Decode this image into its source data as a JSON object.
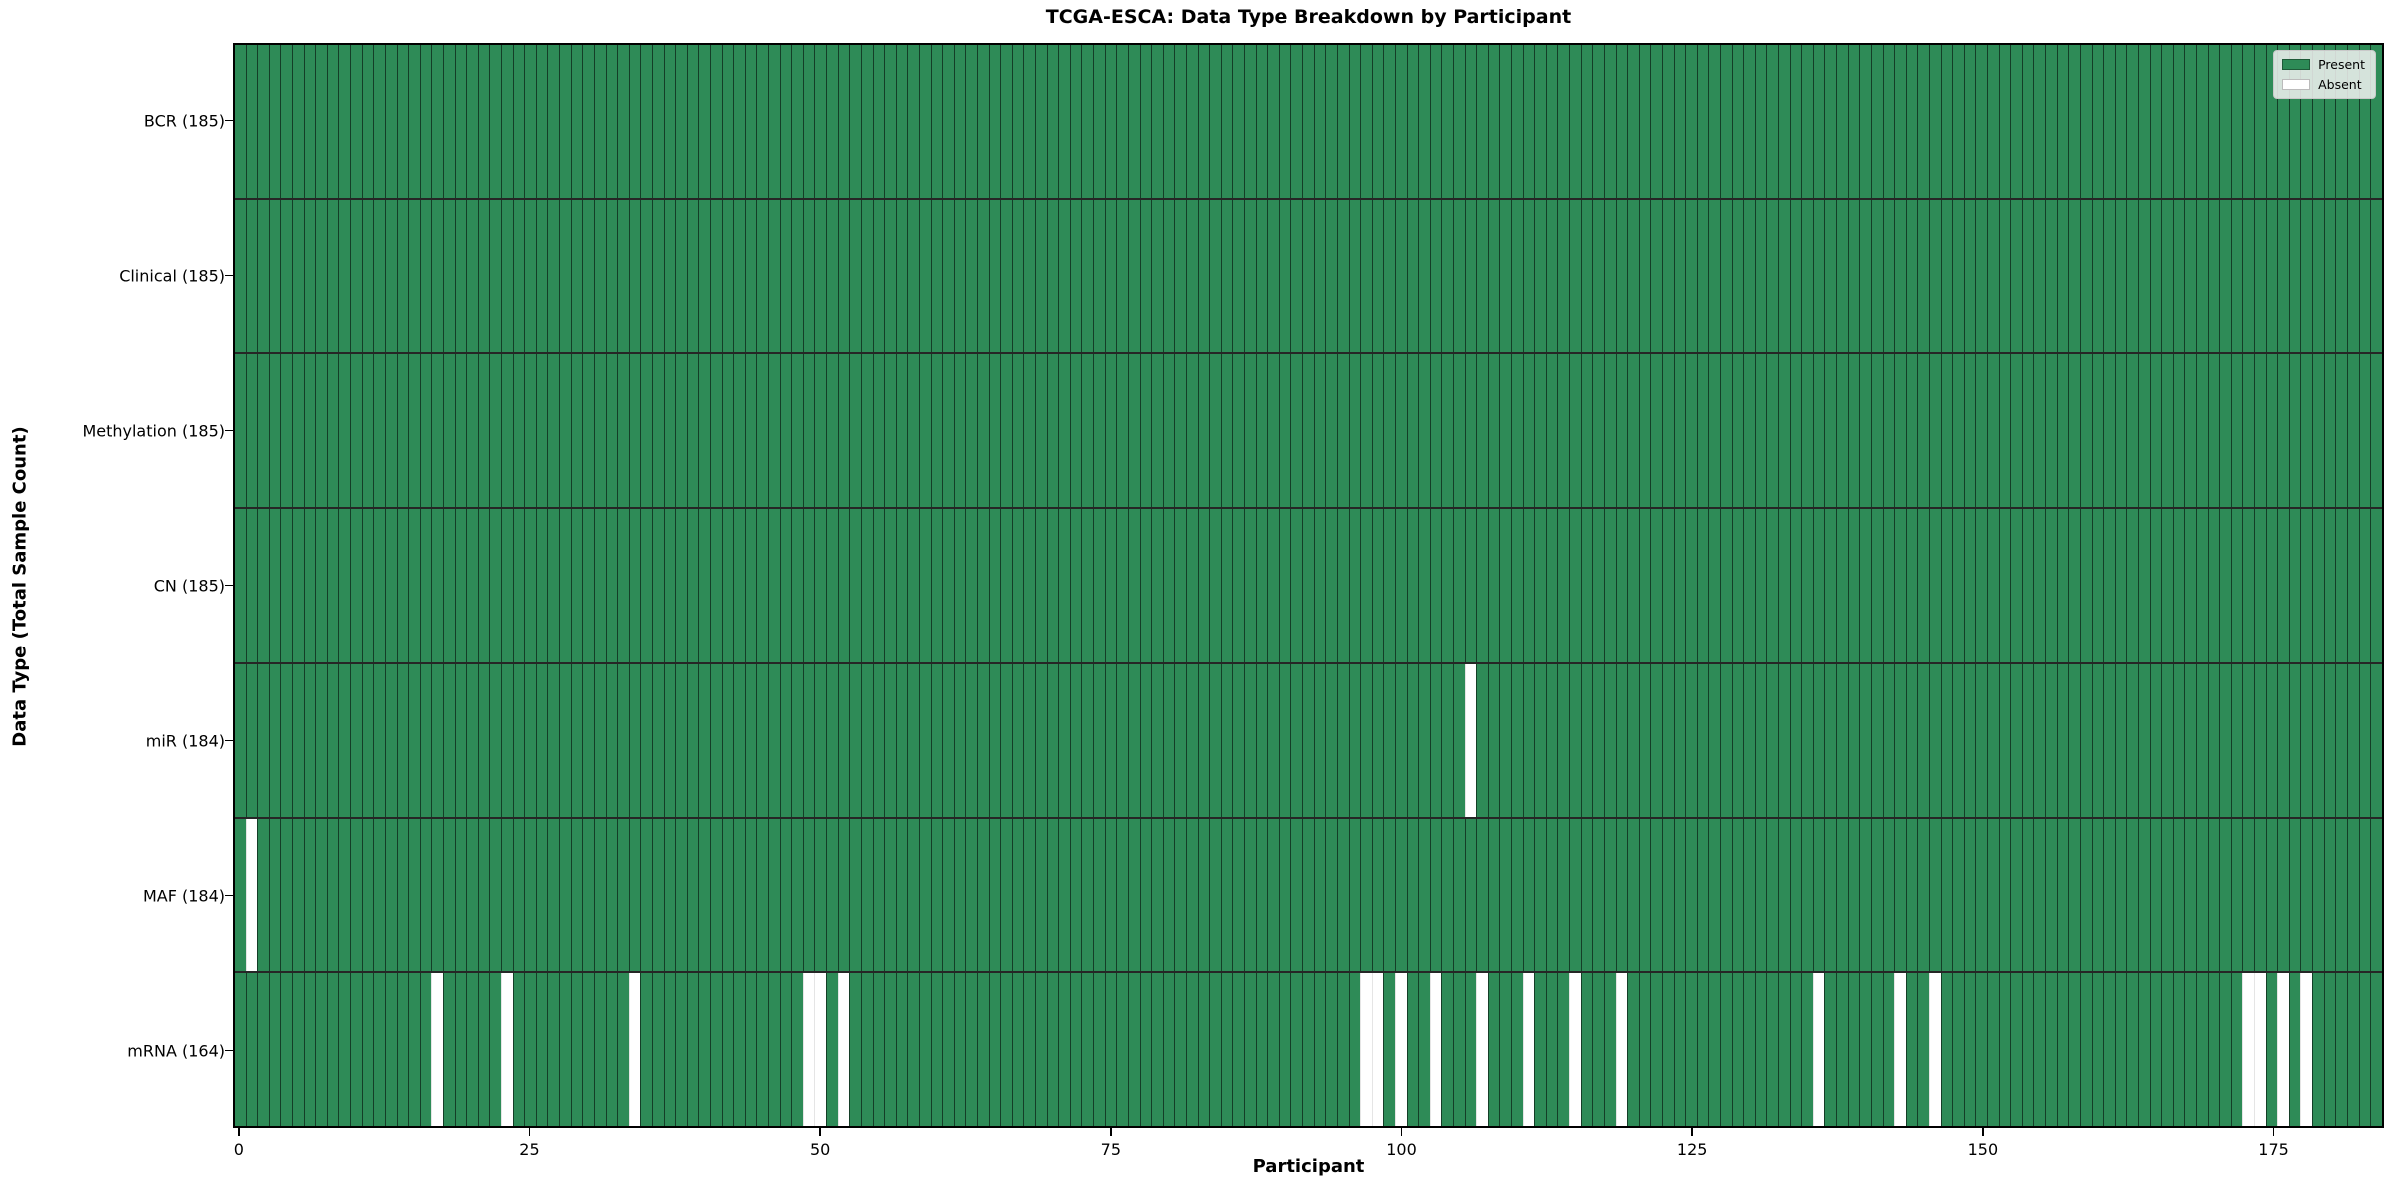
{
  "chart_data": {
    "type": "heatmap",
    "title": "TCGA-ESCA: Data Type Breakdown by Participant",
    "xlabel": "Participant",
    "ylabel": "Data Type (Total Sample Count)",
    "n_participants": 185,
    "x_ticks": [
      0,
      25,
      50,
      75,
      100,
      125,
      150,
      175
    ],
    "x_range": [
      0,
      184
    ],
    "grid": false,
    "legend_position": "upper right",
    "legend": {
      "present_label": "Present",
      "absent_label": "Absent"
    },
    "colors": {
      "present": "#2e8b57",
      "absent": "#ffffff"
    },
    "rows": [
      {
        "label": "BCR (185)",
        "data_type": "BCR",
        "present_count": 185,
        "absent_participants": []
      },
      {
        "label": "Clinical (185)",
        "data_type": "Clinical",
        "present_count": 185,
        "absent_participants": []
      },
      {
        "label": "Methylation (185)",
        "data_type": "Methylation",
        "present_count": 185,
        "absent_participants": []
      },
      {
        "label": "CN (185)",
        "data_type": "CN",
        "present_count": 185,
        "absent_participants": []
      },
      {
        "label": "miR (184)",
        "data_type": "miR",
        "present_count": 184,
        "absent_participants": [
          106
        ]
      },
      {
        "label": "MAF (184)",
        "data_type": "MAF",
        "present_count": 184,
        "absent_participants": [
          1
        ]
      },
      {
        "label": "mRNA (164)",
        "data_type": "mRNA",
        "present_count": 164,
        "absent_participants": [
          17,
          23,
          34,
          49,
          50,
          52,
          97,
          98,
          100,
          103,
          107,
          111,
          115,
          119,
          136,
          143,
          146,
          173,
          174,
          176,
          178
        ]
      }
    ]
  }
}
